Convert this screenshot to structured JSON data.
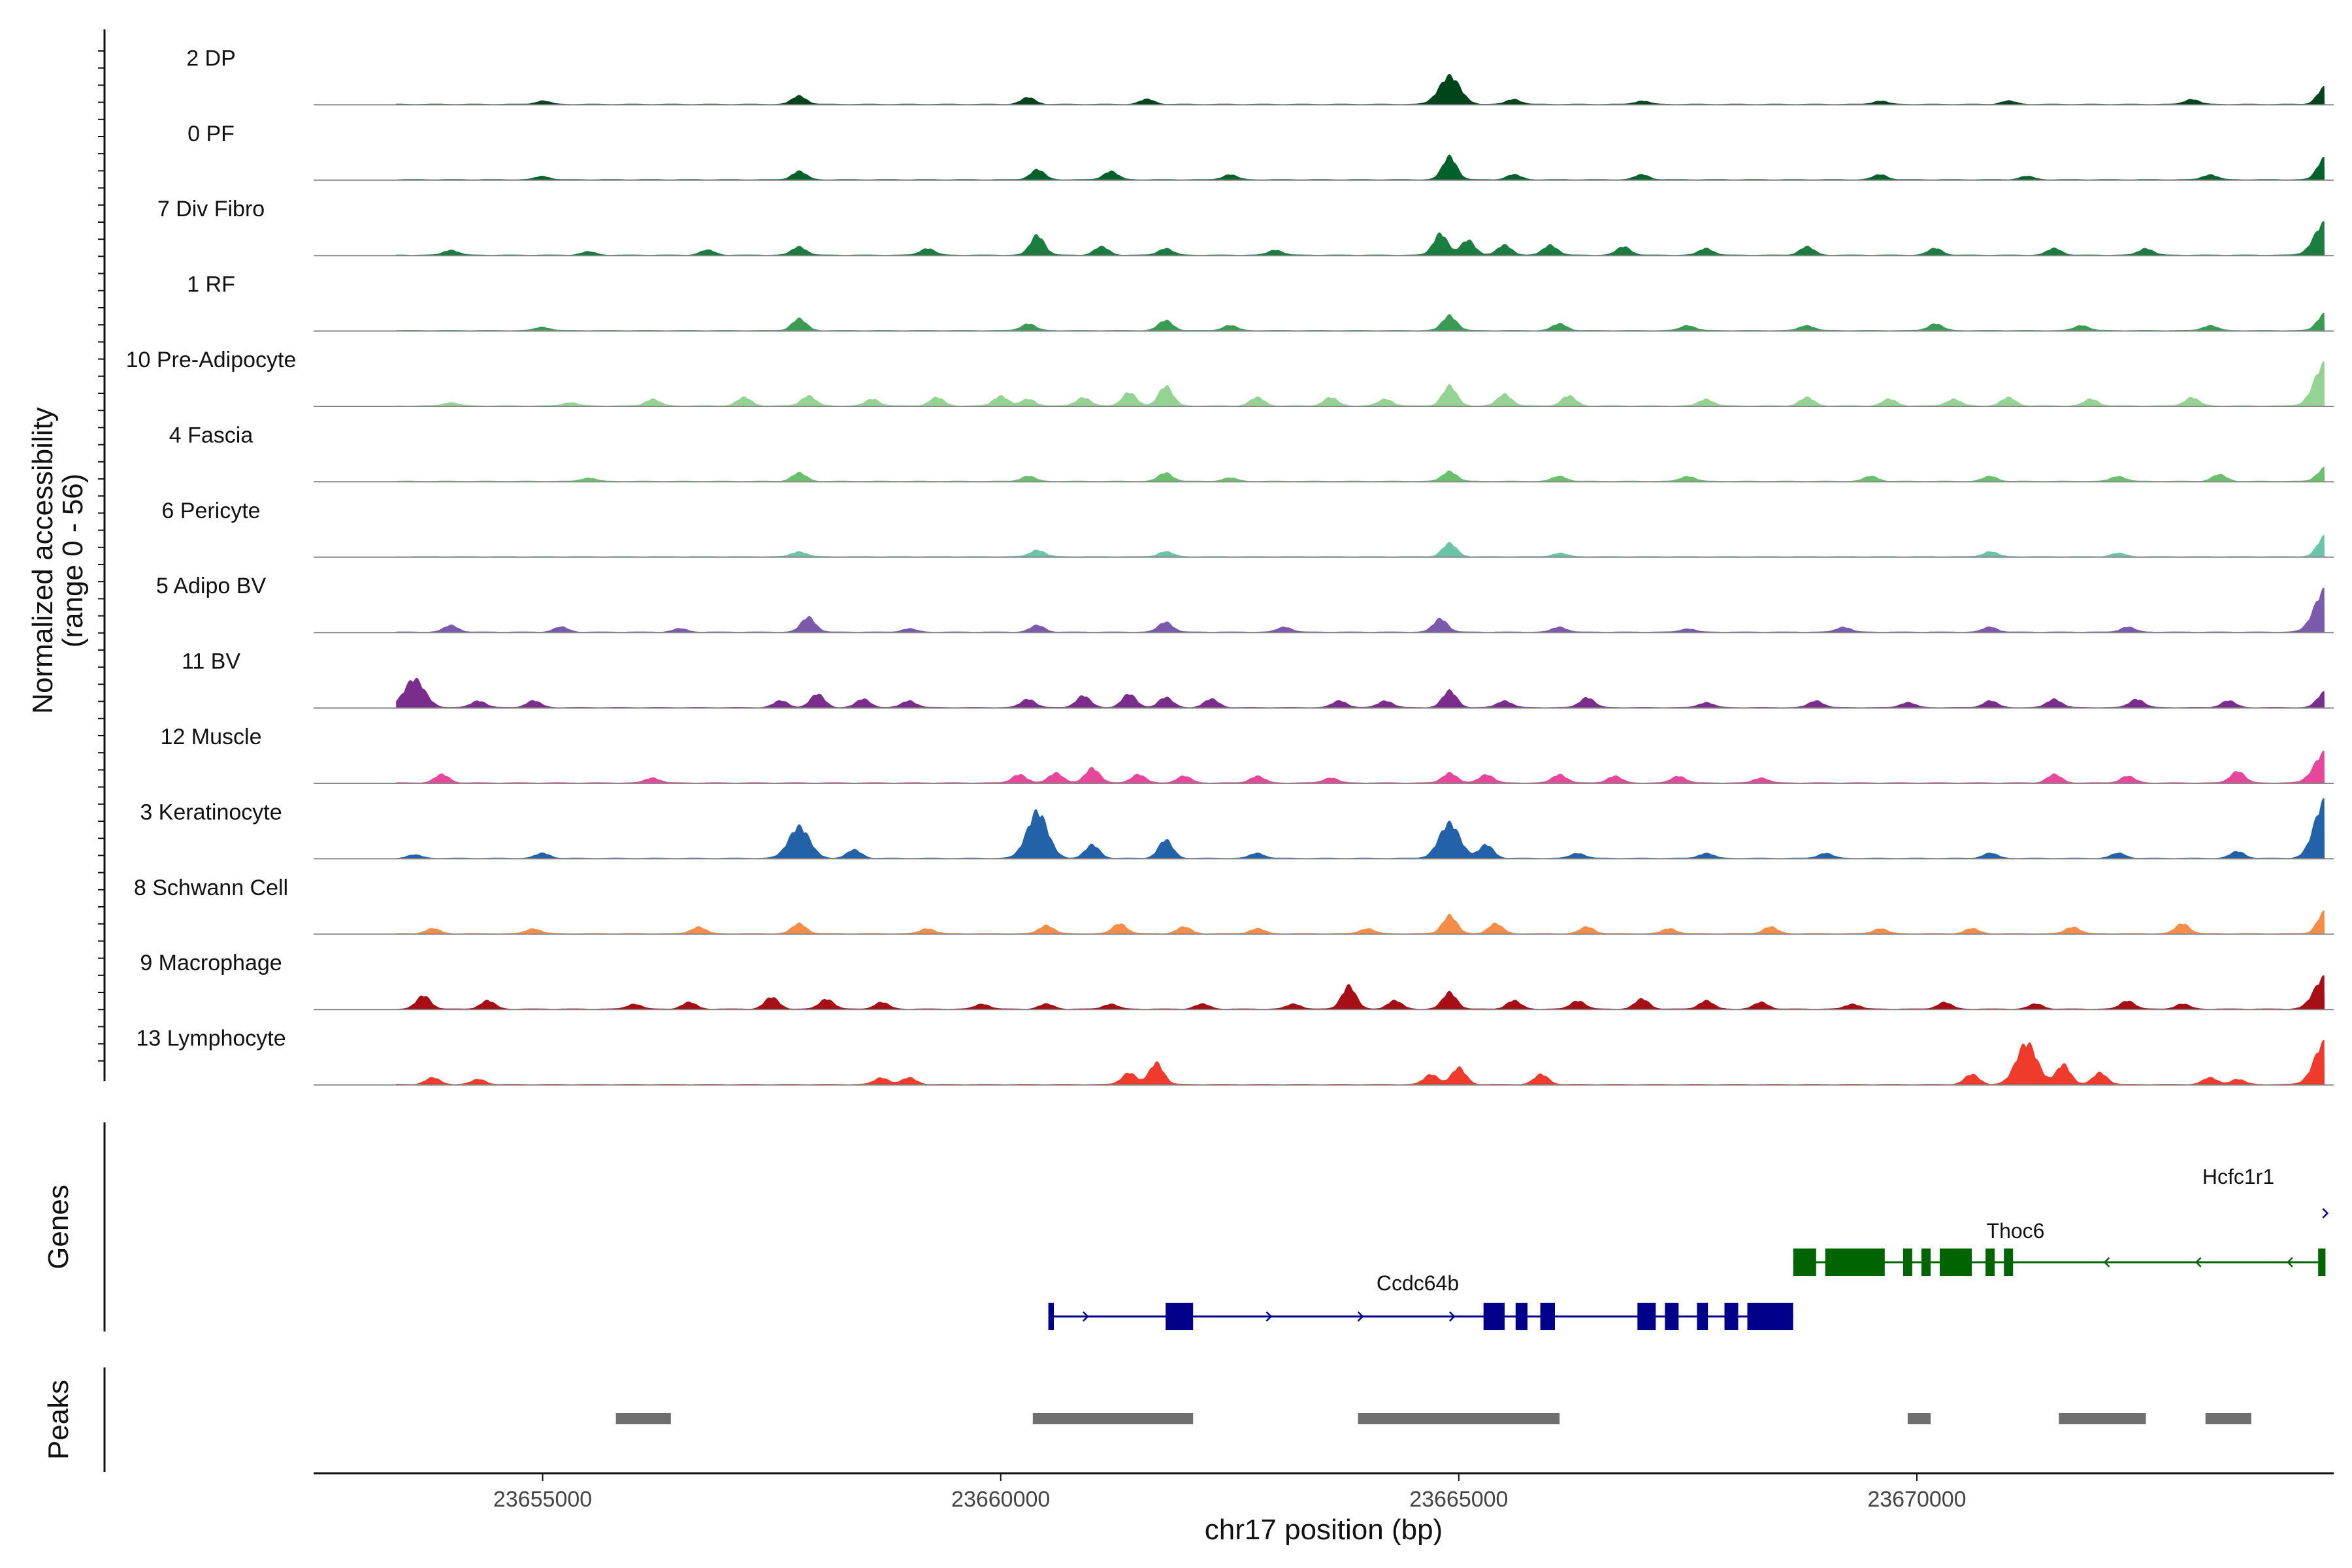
{
  "chart_data": {
    "type": "area",
    "y_axis_title_line1": "Normalized accessibility",
    "y_axis_title_line2": "(range 0 - 56)",
    "y_range": [
      0,
      56
    ],
    "x_axis_title": "chr17 position (bp)",
    "x_range": [
      23652500,
      23674550
    ],
    "x_ticks": [
      23655000,
      23660000,
      23665000,
      23670000
    ],
    "x_tick_labels": [
      "23655000",
      "23660000",
      "23665000",
      "23670000"
    ],
    "genes_label": "Genes",
    "peaks_label": "Peaks",
    "tracks": [
      {
        "name": "2 DP",
        "color": "#00441b",
        "peaks": [
          [
            23655000,
            2
          ],
          [
            23657800,
            5
          ],
          [
            23660300,
            4
          ],
          [
            23661600,
            3
          ],
          [
            23664900,
            17
          ],
          [
            23665600,
            3
          ],
          [
            23667000,
            2
          ],
          [
            23669600,
            2
          ],
          [
            23671000,
            2
          ],
          [
            23673000,
            3
          ],
          [
            23674450,
            10
          ]
        ]
      },
      {
        "name": "0 PF",
        "color": "#00612a",
        "peaks": [
          [
            23655000,
            2
          ],
          [
            23657800,
            5
          ],
          [
            23660400,
            6
          ],
          [
            23661200,
            5
          ],
          [
            23662500,
            3
          ],
          [
            23664900,
            14
          ],
          [
            23665600,
            3
          ],
          [
            23667000,
            3
          ],
          [
            23669600,
            3
          ],
          [
            23671200,
            2
          ],
          [
            23673200,
            3
          ],
          [
            23674450,
            13
          ]
        ]
      },
      {
        "name": "7 Div Fibro",
        "color": "#1b7d3f",
        "peaks": [
          [
            23654000,
            3
          ],
          [
            23655500,
            2
          ],
          [
            23656800,
            3
          ],
          [
            23657800,
            5
          ],
          [
            23659200,
            4
          ],
          [
            23660400,
            12
          ],
          [
            23661100,
            5
          ],
          [
            23661800,
            4
          ],
          [
            23663000,
            3
          ],
          [
            23664800,
            13
          ],
          [
            23665100,
            9
          ],
          [
            23665500,
            6
          ],
          [
            23666000,
            6
          ],
          [
            23666800,
            5
          ],
          [
            23667700,
            4
          ],
          [
            23668800,
            5
          ],
          [
            23670200,
            4
          ],
          [
            23671500,
            4
          ],
          [
            23672500,
            4
          ],
          [
            23674450,
            19
          ]
        ]
      },
      {
        "name": "1 RF",
        "color": "#3b9b53",
        "peaks": [
          [
            23655000,
            2
          ],
          [
            23657800,
            7
          ],
          [
            23660300,
            4
          ],
          [
            23661800,
            6
          ],
          [
            23662500,
            3
          ],
          [
            23664900,
            9
          ],
          [
            23666100,
            4
          ],
          [
            23667500,
            3
          ],
          [
            23668800,
            3
          ],
          [
            23670200,
            4
          ],
          [
            23671800,
            3
          ],
          [
            23673200,
            3
          ],
          [
            23674450,
            10
          ]
        ]
      },
      {
        "name": "10 Pre-Adipocyte",
        "color": "#95d394",
        "peaks": [
          [
            23654000,
            2
          ],
          [
            23655300,
            2
          ],
          [
            23656200,
            4
          ],
          [
            23657200,
            5
          ],
          [
            23657900,
            6
          ],
          [
            23658600,
            4
          ],
          [
            23659300,
            5
          ],
          [
            23660000,
            6
          ],
          [
            23660300,
            4
          ],
          [
            23660900,
            5
          ],
          [
            23661400,
            8
          ],
          [
            23661800,
            12
          ],
          [
            23662800,
            5
          ],
          [
            23663600,
            5
          ],
          [
            23664200,
            4
          ],
          [
            23664900,
            12
          ],
          [
            23665500,
            7
          ],
          [
            23666200,
            6
          ],
          [
            23667700,
            4
          ],
          [
            23668800,
            5
          ],
          [
            23669700,
            4
          ],
          [
            23670400,
            4
          ],
          [
            23671000,
            5
          ],
          [
            23671900,
            4
          ],
          [
            23673000,
            5
          ],
          [
            23674450,
            25
          ]
        ]
      },
      {
        "name": "4 Fascia",
        "color": "#6ac06e",
        "peaks": [
          [
            23655500,
            2
          ],
          [
            23657800,
            5
          ],
          [
            23660300,
            3
          ],
          [
            23661800,
            5
          ],
          [
            23662500,
            2
          ],
          [
            23664900,
            6
          ],
          [
            23666100,
            3
          ],
          [
            23667500,
            3
          ],
          [
            23669500,
            3
          ],
          [
            23670800,
            3
          ],
          [
            23672200,
            3
          ],
          [
            23673300,
            4
          ],
          [
            23674450,
            8
          ]
        ]
      },
      {
        "name": "6 Pericyte",
        "color": "#6bc3a8",
        "peaks": [
          [
            23657800,
            3
          ],
          [
            23660400,
            4
          ],
          [
            23661800,
            3
          ],
          [
            23664900,
            8
          ],
          [
            23666100,
            2
          ],
          [
            23670800,
            3
          ],
          [
            23672200,
            2
          ],
          [
            23674450,
            12
          ]
        ]
      },
      {
        "name": "5 Adipo BV",
        "color": "#7b5aad",
        "peaks": [
          [
            23654000,
            4
          ],
          [
            23655200,
            3
          ],
          [
            23656500,
            2
          ],
          [
            23657900,
            9
          ],
          [
            23659000,
            2
          ],
          [
            23660400,
            4
          ],
          [
            23661800,
            6
          ],
          [
            23663100,
            3
          ],
          [
            23664800,
            8
          ],
          [
            23666100,
            3
          ],
          [
            23667500,
            2
          ],
          [
            23669200,
            3
          ],
          [
            23670800,
            3
          ],
          [
            23672300,
            3
          ],
          [
            23674450,
            25
          ]
        ]
      },
      {
        "name": "11 BV",
        "color": "#7b2d8e",
        "peaks": [
          [
            23653600,
            17
          ],
          [
            23654300,
            4
          ],
          [
            23654900,
            4
          ],
          [
            23657600,
            4
          ],
          [
            23658000,
            8
          ],
          [
            23658500,
            5
          ],
          [
            23659000,
            4
          ],
          [
            23660300,
            5
          ],
          [
            23660900,
            7
          ],
          [
            23661400,
            8
          ],
          [
            23661800,
            6
          ],
          [
            23662300,
            5
          ],
          [
            23663700,
            4
          ],
          [
            23664200,
            4
          ],
          [
            23664900,
            10
          ],
          [
            23665500,
            4
          ],
          [
            23666400,
            6
          ],
          [
            23667700,
            3
          ],
          [
            23668900,
            4
          ],
          [
            23669900,
            3
          ],
          [
            23670800,
            4
          ],
          [
            23671500,
            5
          ],
          [
            23672400,
            5
          ],
          [
            23673400,
            4
          ],
          [
            23674450,
            9
          ]
        ]
      },
      {
        "name": "12 Muscle",
        "color": "#e7479b",
        "peaks": [
          [
            23653900,
            5
          ],
          [
            23656200,
            3
          ],
          [
            23660200,
            5
          ],
          [
            23660600,
            6
          ],
          [
            23661000,
            9
          ],
          [
            23661500,
            5
          ],
          [
            23662000,
            4
          ],
          [
            23662800,
            4
          ],
          [
            23663600,
            3
          ],
          [
            23664900,
            6
          ],
          [
            23665300,
            5
          ],
          [
            23666100,
            5
          ],
          [
            23666700,
            4
          ],
          [
            23667400,
            4
          ],
          [
            23668300,
            3
          ],
          [
            23671500,
            5
          ],
          [
            23672300,
            4
          ],
          [
            23673500,
            7
          ],
          [
            23674450,
            18
          ]
        ]
      },
      {
        "name": "3 Keratinocyte",
        "color": "#2361a9",
        "peaks": [
          [
            23653600,
            2
          ],
          [
            23655000,
            3
          ],
          [
            23657800,
            19
          ],
          [
            23658400,
            5
          ],
          [
            23660400,
            28
          ],
          [
            23661000,
            8
          ],
          [
            23661800,
            11
          ],
          [
            23662800,
            3
          ],
          [
            23664900,
            21
          ],
          [
            23665300,
            8
          ],
          [
            23666300,
            3
          ],
          [
            23667700,
            3
          ],
          [
            23669000,
            3
          ],
          [
            23670800,
            3
          ],
          [
            23672200,
            3
          ],
          [
            23673500,
            4
          ],
          [
            23674450,
            34
          ]
        ]
      },
      {
        "name": "8 Schwann Cell",
        "color": "#f48d47",
        "peaks": [
          [
            23653800,
            3
          ],
          [
            23654900,
            3
          ],
          [
            23656700,
            4
          ],
          [
            23657800,
            6
          ],
          [
            23659200,
            3
          ],
          [
            23660500,
            5
          ],
          [
            23661300,
            6
          ],
          [
            23662000,
            4
          ],
          [
            23662800,
            3
          ],
          [
            23664000,
            3
          ],
          [
            23664900,
            11
          ],
          [
            23665400,
            6
          ],
          [
            23666400,
            4
          ],
          [
            23667300,
            3
          ],
          [
            23668400,
            4
          ],
          [
            23669600,
            3
          ],
          [
            23670600,
            3
          ],
          [
            23671700,
            4
          ],
          [
            23672900,
            6
          ],
          [
            23674450,
            13
          ]
        ]
      },
      {
        "name": "9 Macrophage",
        "color": "#a50f15",
        "peaks": [
          [
            23653700,
            8
          ],
          [
            23654400,
            5
          ],
          [
            23656000,
            3
          ],
          [
            23656600,
            4
          ],
          [
            23657500,
            7
          ],
          [
            23658100,
            6
          ],
          [
            23658700,
            4
          ],
          [
            23659800,
            3
          ],
          [
            23660500,
            3
          ],
          [
            23661200,
            3
          ],
          [
            23662200,
            3
          ],
          [
            23663200,
            3
          ],
          [
            23663800,
            14
          ],
          [
            23664300,
            5
          ],
          [
            23664900,
            10
          ],
          [
            23665600,
            5
          ],
          [
            23666300,
            5
          ],
          [
            23667000,
            6
          ],
          [
            23667700,
            5
          ],
          [
            23668300,
            4
          ],
          [
            23669300,
            3
          ],
          [
            23670300,
            4
          ],
          [
            23671300,
            3
          ],
          [
            23672300,
            5
          ],
          [
            23672900,
            3
          ],
          [
            23674450,
            19
          ]
        ]
      },
      {
        "name": "13 Lymphocyte",
        "color": "#ef3b2c",
        "peaks": [
          [
            23653800,
            4
          ],
          [
            23654300,
            3
          ],
          [
            23658700,
            4
          ],
          [
            23659000,
            4
          ],
          [
            23661400,
            7
          ],
          [
            23661700,
            13
          ],
          [
            23664700,
            6
          ],
          [
            23665000,
            10
          ],
          [
            23665900,
            6
          ],
          [
            23670600,
            6
          ],
          [
            23671200,
            25
          ],
          [
            23671600,
            12
          ],
          [
            23672000,
            7
          ],
          [
            23673200,
            4
          ],
          [
            23673500,
            3
          ],
          [
            23674450,
            25
          ]
        ]
      }
    ],
    "genes": [
      {
        "name": "Ccdc64b",
        "strand": "+",
        "color": "#00008b",
        "start": 23660550,
        "end": 23668650,
        "exons": [
          [
            23660520,
            23660580
          ],
          [
            23661800,
            23662100
          ],
          [
            23665270,
            23665500
          ],
          [
            23665620,
            23665750
          ],
          [
            23665890,
            23666050
          ],
          [
            23666950,
            23667150
          ],
          [
            23667250,
            23667400
          ],
          [
            23667600,
            23667720
          ],
          [
            23667900,
            23668050
          ],
          [
            23668150,
            23668650
          ]
        ]
      },
      {
        "name": "Thoc6",
        "strand": "-",
        "color": "#006400",
        "start": 23668650,
        "end": 23674450,
        "exons": [
          [
            23668650,
            23668900
          ],
          [
            23669000,
            23669650
          ],
          [
            23669850,
            23669950
          ],
          [
            23670050,
            23670150
          ],
          [
            23670250,
            23670600
          ],
          [
            23670750,
            23670850
          ],
          [
            23670950,
            23671050
          ],
          [
            23674380,
            23674460
          ]
        ]
      },
      {
        "name": "Hcfc1r1",
        "strand": "+",
        "color": "#00008b",
        "start": 23674380,
        "end": 23674460,
        "exons": []
      }
    ],
    "peaks": [
      [
        23655800,
        23656400
      ],
      [
        23660350,
        23662100
      ],
      [
        23663900,
        23666100
      ],
      [
        23669900,
        23670150
      ],
      [
        23671550,
        23672500
      ],
      [
        23673150,
        23673650
      ]
    ]
  }
}
